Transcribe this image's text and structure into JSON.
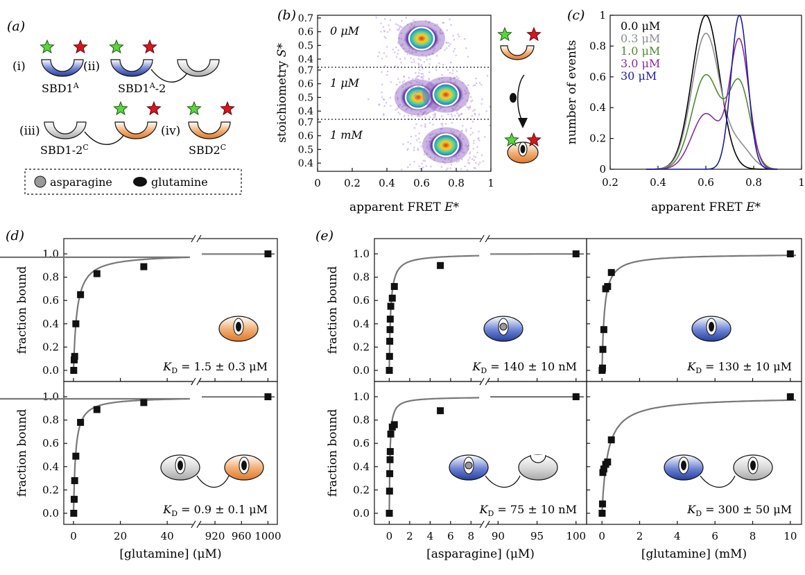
{
  "panel_letters": {
    "a": "(a)",
    "b": "(b)",
    "c": "(c)",
    "d": "(d)",
    "e": "(e)"
  },
  "panel_a": {
    "labels": [
      "(i)",
      "(ii)",
      "(iii)",
      "(iv)"
    ],
    "constructs": [
      "SBD1A",
      "SBD1A-2",
      "SBD1-2C",
      "SBD2C"
    ],
    "legend": {
      "asparagine": "asparagine",
      "glutamine": "glutamine"
    },
    "colors": {
      "sbd1": "#3a54b0",
      "sbd2": "#e98a3a",
      "grey": "#c8c8c8",
      "donor": "#5ad53a",
      "acceptor": "#d8161e"
    }
  },
  "panel_b": {
    "xlabel": "apparent FRET E*",
    "ylabel": "stoichiometry S*",
    "sections": [
      {
        "label": "0 μM",
        "centers": [
          [
            0.6,
            0.55
          ]
        ]
      },
      {
        "label": "1 μM",
        "centers": [
          [
            0.58,
            0.5
          ],
          [
            0.74,
            0.52
          ]
        ]
      },
      {
        "label": "1 mM",
        "centers": [
          [
            0.74,
            0.53
          ]
        ]
      }
    ],
    "xticks": [
      "0",
      "0.2",
      "0.4",
      "0.6",
      "0.8",
      "1"
    ],
    "yticks": [
      "0.4",
      "0.5",
      "0.6",
      "0.7"
    ]
  },
  "chart_data": [
    {
      "type": "line",
      "panel": "c",
      "xlabel": "apparent FRET E*",
      "ylabel": "number of events",
      "xlim": [
        0.2,
        1.0
      ],
      "ylim": [
        0,
        1.0
      ],
      "xticks": [
        "0.2",
        "0.4",
        "0.6",
        "0.8",
        "1"
      ],
      "yticks": [
        "0",
        "0.2",
        "0.4",
        "0.6",
        "0.8",
        "1"
      ],
      "series": [
        {
          "name": "0.0 μM",
          "color": "#000000",
          "peaks": [
            [
              0.6,
              1.0,
              0.058
            ]
          ]
        },
        {
          "name": "0.3 μM",
          "color": "#8c8c8c",
          "peaks": [
            [
              0.6,
              0.88,
              0.058
            ],
            [
              0.74,
              0.14,
              0.05
            ]
          ]
        },
        {
          "name": "1.0 μM",
          "color": "#4e8a2e",
          "peaks": [
            [
              0.6,
              0.61,
              0.058
            ],
            [
              0.74,
              0.55,
              0.045
            ]
          ]
        },
        {
          "name": "3.0 μM",
          "color": "#8b2a9c",
          "peaks": [
            [
              0.6,
              0.36,
              0.058
            ],
            [
              0.74,
              0.83,
              0.04
            ]
          ]
        },
        {
          "name": "30 μM",
          "color": "#1a1aa0",
          "peaks": [
            [
              0.74,
              1.0,
              0.035
            ]
          ]
        }
      ]
    },
    {
      "type": "scatter",
      "panel": "d-top",
      "ylabel": "fraction bound",
      "xlabel": "[glutamine] (μM)",
      "x": [
        0.1,
        0.3,
        0.5,
        1,
        3,
        10,
        30,
        1000
      ],
      "y": [
        0.0,
        0.09,
        0.12,
        0.4,
        0.65,
        0.83,
        0.89,
        1.0
      ],
      "kd": 1.5,
      "annotation": "KD = 1.5 ± 0.3 μM"
    },
    {
      "type": "scatter",
      "panel": "d-bottom",
      "ylabel": "fraction bound",
      "xlabel": "[glutamine] (μM)",
      "x": [
        0.1,
        0.3,
        0.5,
        1,
        3,
        10,
        30,
        1000
      ],
      "y": [
        0.0,
        0.12,
        0.28,
        0.49,
        0.78,
        0.89,
        0.95,
        1.0
      ],
      "kd": 0.9,
      "annotation": "KD = 0.9 ± 0.1 μM"
    },
    {
      "type": "scatter",
      "panel": "e-top-left",
      "ylabel": "fraction bound",
      "xlabel": "[asparagine] (μM)",
      "x": [
        0.01,
        0.03,
        0.05,
        0.08,
        0.1,
        0.15,
        0.3,
        0.5,
        5,
        100
      ],
      "y": [
        0.0,
        0.12,
        0.25,
        0.35,
        0.44,
        0.55,
        0.62,
        0.72,
        0.9,
        1.0
      ],
      "kd": 0.14,
      "annotation": "KD = 140 ± 10 nM"
    },
    {
      "type": "scatter",
      "panel": "e-top-right",
      "ylabel": "",
      "xlabel": "[glutamine] (mM)",
      "x": [
        0.01,
        0.03,
        0.05,
        0.1,
        0.2,
        0.3,
        0.5,
        10
      ],
      "y": [
        0.0,
        0.02,
        0.18,
        0.35,
        0.7,
        0.72,
        0.84,
        1.0
      ],
      "kd": 0.13,
      "annotation": "KD = 130 ± 10 μM"
    },
    {
      "type": "scatter",
      "panel": "e-bottom-left",
      "ylabel": "fraction bound",
      "xlabel": "[asparagine] (μM)",
      "x": [
        0.01,
        0.03,
        0.05,
        0.08,
        0.1,
        0.15,
        0.3,
        0.5,
        5,
        100
      ],
      "y": [
        0.0,
        0.19,
        0.34,
        0.46,
        0.53,
        0.68,
        0.74,
        0.76,
        0.88,
        1.0
      ],
      "kd": 0.075,
      "annotation": "KD = 75 ± 10 nM"
    },
    {
      "type": "scatter",
      "panel": "e-bottom-right",
      "ylabel": "",
      "xlabel": "[glutamine] (mM)",
      "x": [
        0.01,
        0.03,
        0.05,
        0.1,
        0.2,
        0.3,
        0.5,
        10
      ],
      "y": [
        0.0,
        0.08,
        0.35,
        0.38,
        0.42,
        0.44,
        0.63,
        1.0
      ],
      "kd": 0.3,
      "annotation": "KD = 300 ± 50 μM"
    }
  ]
}
